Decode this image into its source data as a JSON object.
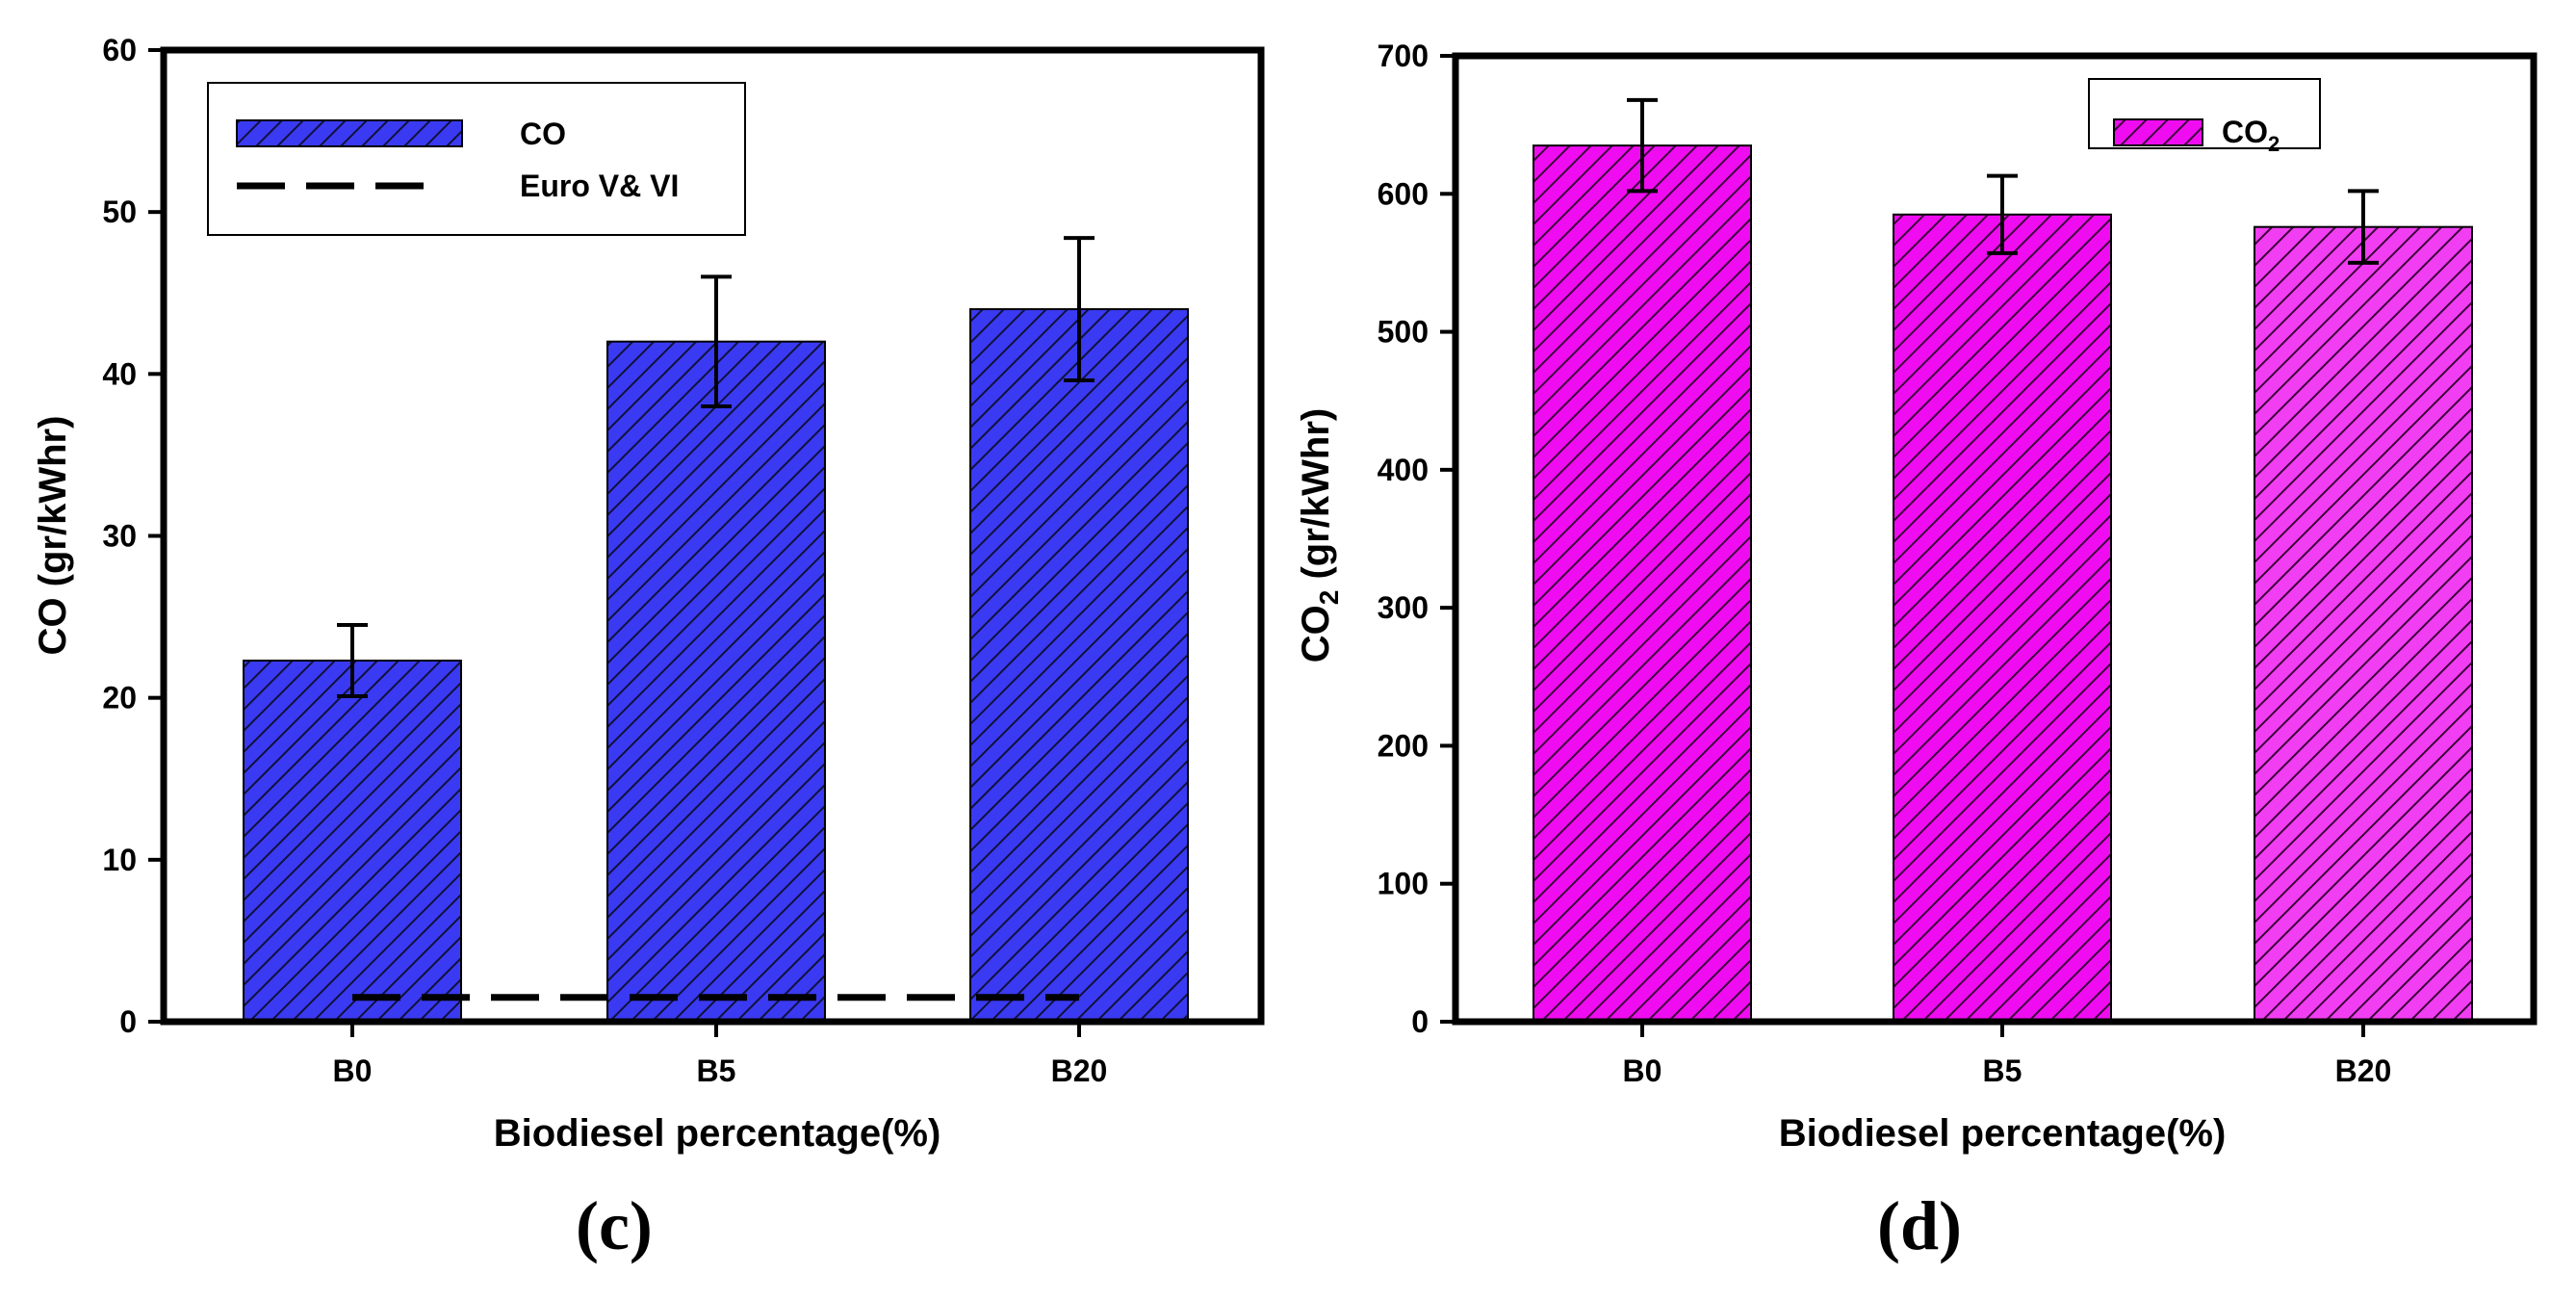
{
  "chart_data": [
    {
      "type": "bar",
      "panel_label": "(c)",
      "title": "",
      "categories": [
        "B0",
        "B5",
        "B20"
      ],
      "series": [
        {
          "name": "CO",
          "values": [
            22.3,
            42.0,
            44.0
          ],
          "errors": [
            2.2,
            4.0,
            4.4
          ],
          "color": "#3a3af2"
        }
      ],
      "reference_lines": [
        {
          "name": "Euro V& VI",
          "value": 1.5,
          "style": "dashed",
          "color": "#000000"
        }
      ],
      "xlabel": "Biodiesel percentage(%)",
      "ylabel": "CO (gr/kWhr)",
      "ylim": [
        0,
        60
      ],
      "yticks": [
        0,
        10,
        20,
        30,
        40,
        50,
        60
      ],
      "legend_location": "top-left",
      "grid": false
    },
    {
      "type": "bar",
      "panel_label": "(d)",
      "title": "",
      "categories": [
        "B0",
        "B5",
        "B20"
      ],
      "series": [
        {
          "name": "CO",
          "name_subscript": "2",
          "values": [
            635,
            585,
            576
          ],
          "errors": [
            33,
            28,
            26
          ],
          "colors": [
            "#f00cf0",
            "#f00cf0",
            "#f23ef2"
          ]
        }
      ],
      "xlabel": "Biodiesel percentage(%)",
      "ylabel_main": "CO",
      "ylabel_subscript": "2",
      "ylabel_rest": " (gr/kWhr)",
      "ylim": [
        0,
        700
      ],
      "yticks": [
        0,
        100,
        200,
        300,
        400,
        500,
        600,
        700
      ],
      "legend_location": "top-right",
      "grid": false
    }
  ]
}
